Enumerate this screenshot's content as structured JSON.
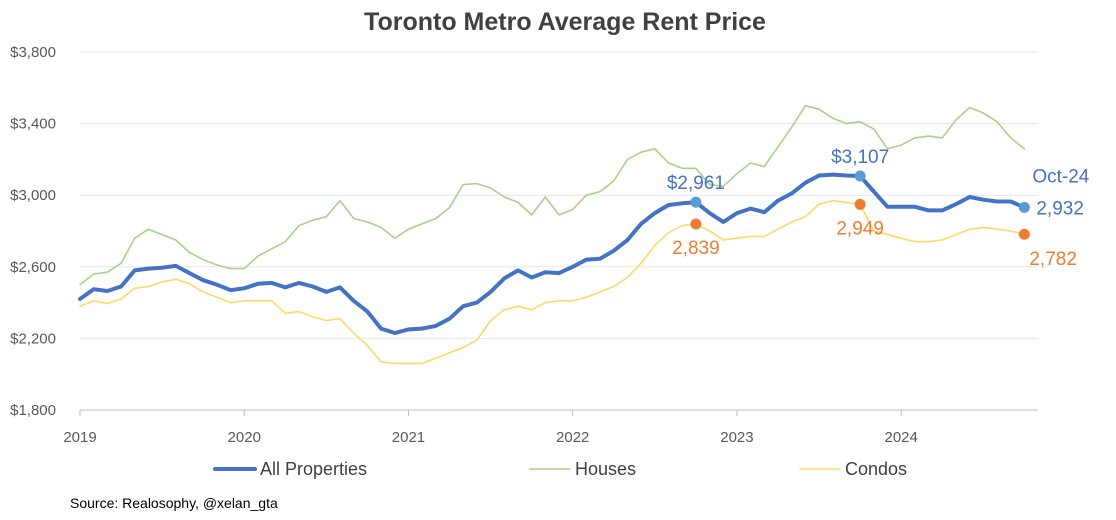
{
  "chart_data": {
    "type": "line",
    "title": "Toronto Metro Average Rent Price",
    "ylim": [
      1800,
      3800
    ],
    "yticks": [
      1800,
      2200,
      2600,
      3000,
      3400,
      3800
    ],
    "ytick_labels": [
      "$1,800",
      "$2,200",
      "$2,600",
      "$3,000",
      "$3,400",
      "$3,800"
    ],
    "xlim": [
      2019.0,
      2024.833
    ],
    "xticks": [
      2019,
      2020,
      2021,
      2022,
      2023,
      2024
    ],
    "xtick_labels": [
      "2019",
      "2020",
      "2021",
      "2022",
      "2023",
      "2024"
    ],
    "colors": {
      "all": "#4472C4",
      "houses": "#A9D18E",
      "condos": "#FFD966",
      "marker_all": "#5B9BD5",
      "marker_condos": "#ED7D31",
      "label_all": "#4472C4",
      "label_condos": "#ED7D31",
      "axis": "#BFBFBF",
      "grid": "#E7E7E7"
    },
    "series": [
      {
        "key": "all",
        "name": "All Properties",
        "width": 4,
        "values": [
          2420,
          2475,
          2465,
          2490,
          2580,
          2590,
          2595,
          2605,
          2565,
          2525,
          2500,
          2470,
          2480,
          2505,
          2510,
          2485,
          2510,
          2490,
          2460,
          2485,
          2410,
          2350,
          2255,
          2230,
          2250,
          2255,
          2270,
          2310,
          2380,
          2400,
          2460,
          2535,
          2580,
          2540,
          2570,
          2565,
          2600,
          2640,
          2645,
          2690,
          2750,
          2840,
          2900,
          2945,
          2955,
          2961,
          2900,
          2850,
          2900,
          2925,
          2905,
          2970,
          3010,
          3070,
          3110,
          3115,
          3110,
          3107,
          3020,
          2935,
          2935,
          2935,
          2915,
          2915,
          2950,
          2990,
          2975,
          2965,
          2965,
          2932
        ]
      },
      {
        "key": "houses",
        "name": "Houses",
        "width": 1.6,
        "values": [
          2500,
          2560,
          2570,
          2620,
          2760,
          2810,
          2780,
          2750,
          2680,
          2640,
          2610,
          2590,
          2590,
          2660,
          2700,
          2740,
          2830,
          2860,
          2880,
          2970,
          2870,
          2850,
          2820,
          2760,
          2810,
          2840,
          2870,
          2930,
          3060,
          3065,
          3040,
          2990,
          2960,
          2890,
          2990,
          2890,
          2920,
          3000,
          3020,
          3080,
          3200,
          3240,
          3260,
          3180,
          3150,
          3150,
          3060,
          3050,
          3120,
          3180,
          3160,
          3270,
          3380,
          3500,
          3480,
          3430,
          3400,
          3410,
          3370,
          3260,
          3280,
          3320,
          3330,
          3320,
          3420,
          3490,
          3460,
          3410,
          3320,
          3260
        ]
      },
      {
        "key": "condos",
        "name": "Condos",
        "width": 1.6,
        "values": [
          2380,
          2410,
          2395,
          2420,
          2480,
          2490,
          2515,
          2530,
          2505,
          2460,
          2430,
          2400,
          2410,
          2410,
          2410,
          2340,
          2350,
          2320,
          2300,
          2310,
          2230,
          2160,
          2070,
          2060,
          2060,
          2060,
          2090,
          2120,
          2150,
          2190,
          2300,
          2360,
          2380,
          2360,
          2400,
          2410,
          2410,
          2430,
          2460,
          2490,
          2540,
          2620,
          2720,
          2790,
          2830,
          2839,
          2800,
          2750,
          2760,
          2770,
          2770,
          2810,
          2850,
          2880,
          2950,
          2970,
          2960,
          2949,
          2800,
          2780,
          2760,
          2740,
          2740,
          2750,
          2780,
          2810,
          2820,
          2810,
          2800,
          2782
        ]
      }
    ],
    "highlights": [
      {
        "series": "all",
        "index": 45,
        "value": 2961,
        "label": "$2,961",
        "pos": "above"
      },
      {
        "series": "all",
        "index": 57,
        "value": 3107,
        "label": "$3,107",
        "pos": "above"
      },
      {
        "series": "all",
        "index": 69,
        "value": 2932,
        "label": "2,932",
        "pos": "right"
      },
      {
        "series": "condos",
        "index": 45,
        "value": 2839,
        "label": "2,839",
        "pos": "below"
      },
      {
        "series": "condos",
        "index": 57,
        "value": 2949,
        "label": "2,949",
        "pos": "below"
      },
      {
        "series": "condos",
        "index": 69,
        "value": 2782,
        "label": "2,782",
        "pos": "below-right"
      }
    ],
    "annotation": "Oct-24",
    "legend_position": "bottom"
  },
  "source": "Source: Realosophy, @xelan_gta"
}
